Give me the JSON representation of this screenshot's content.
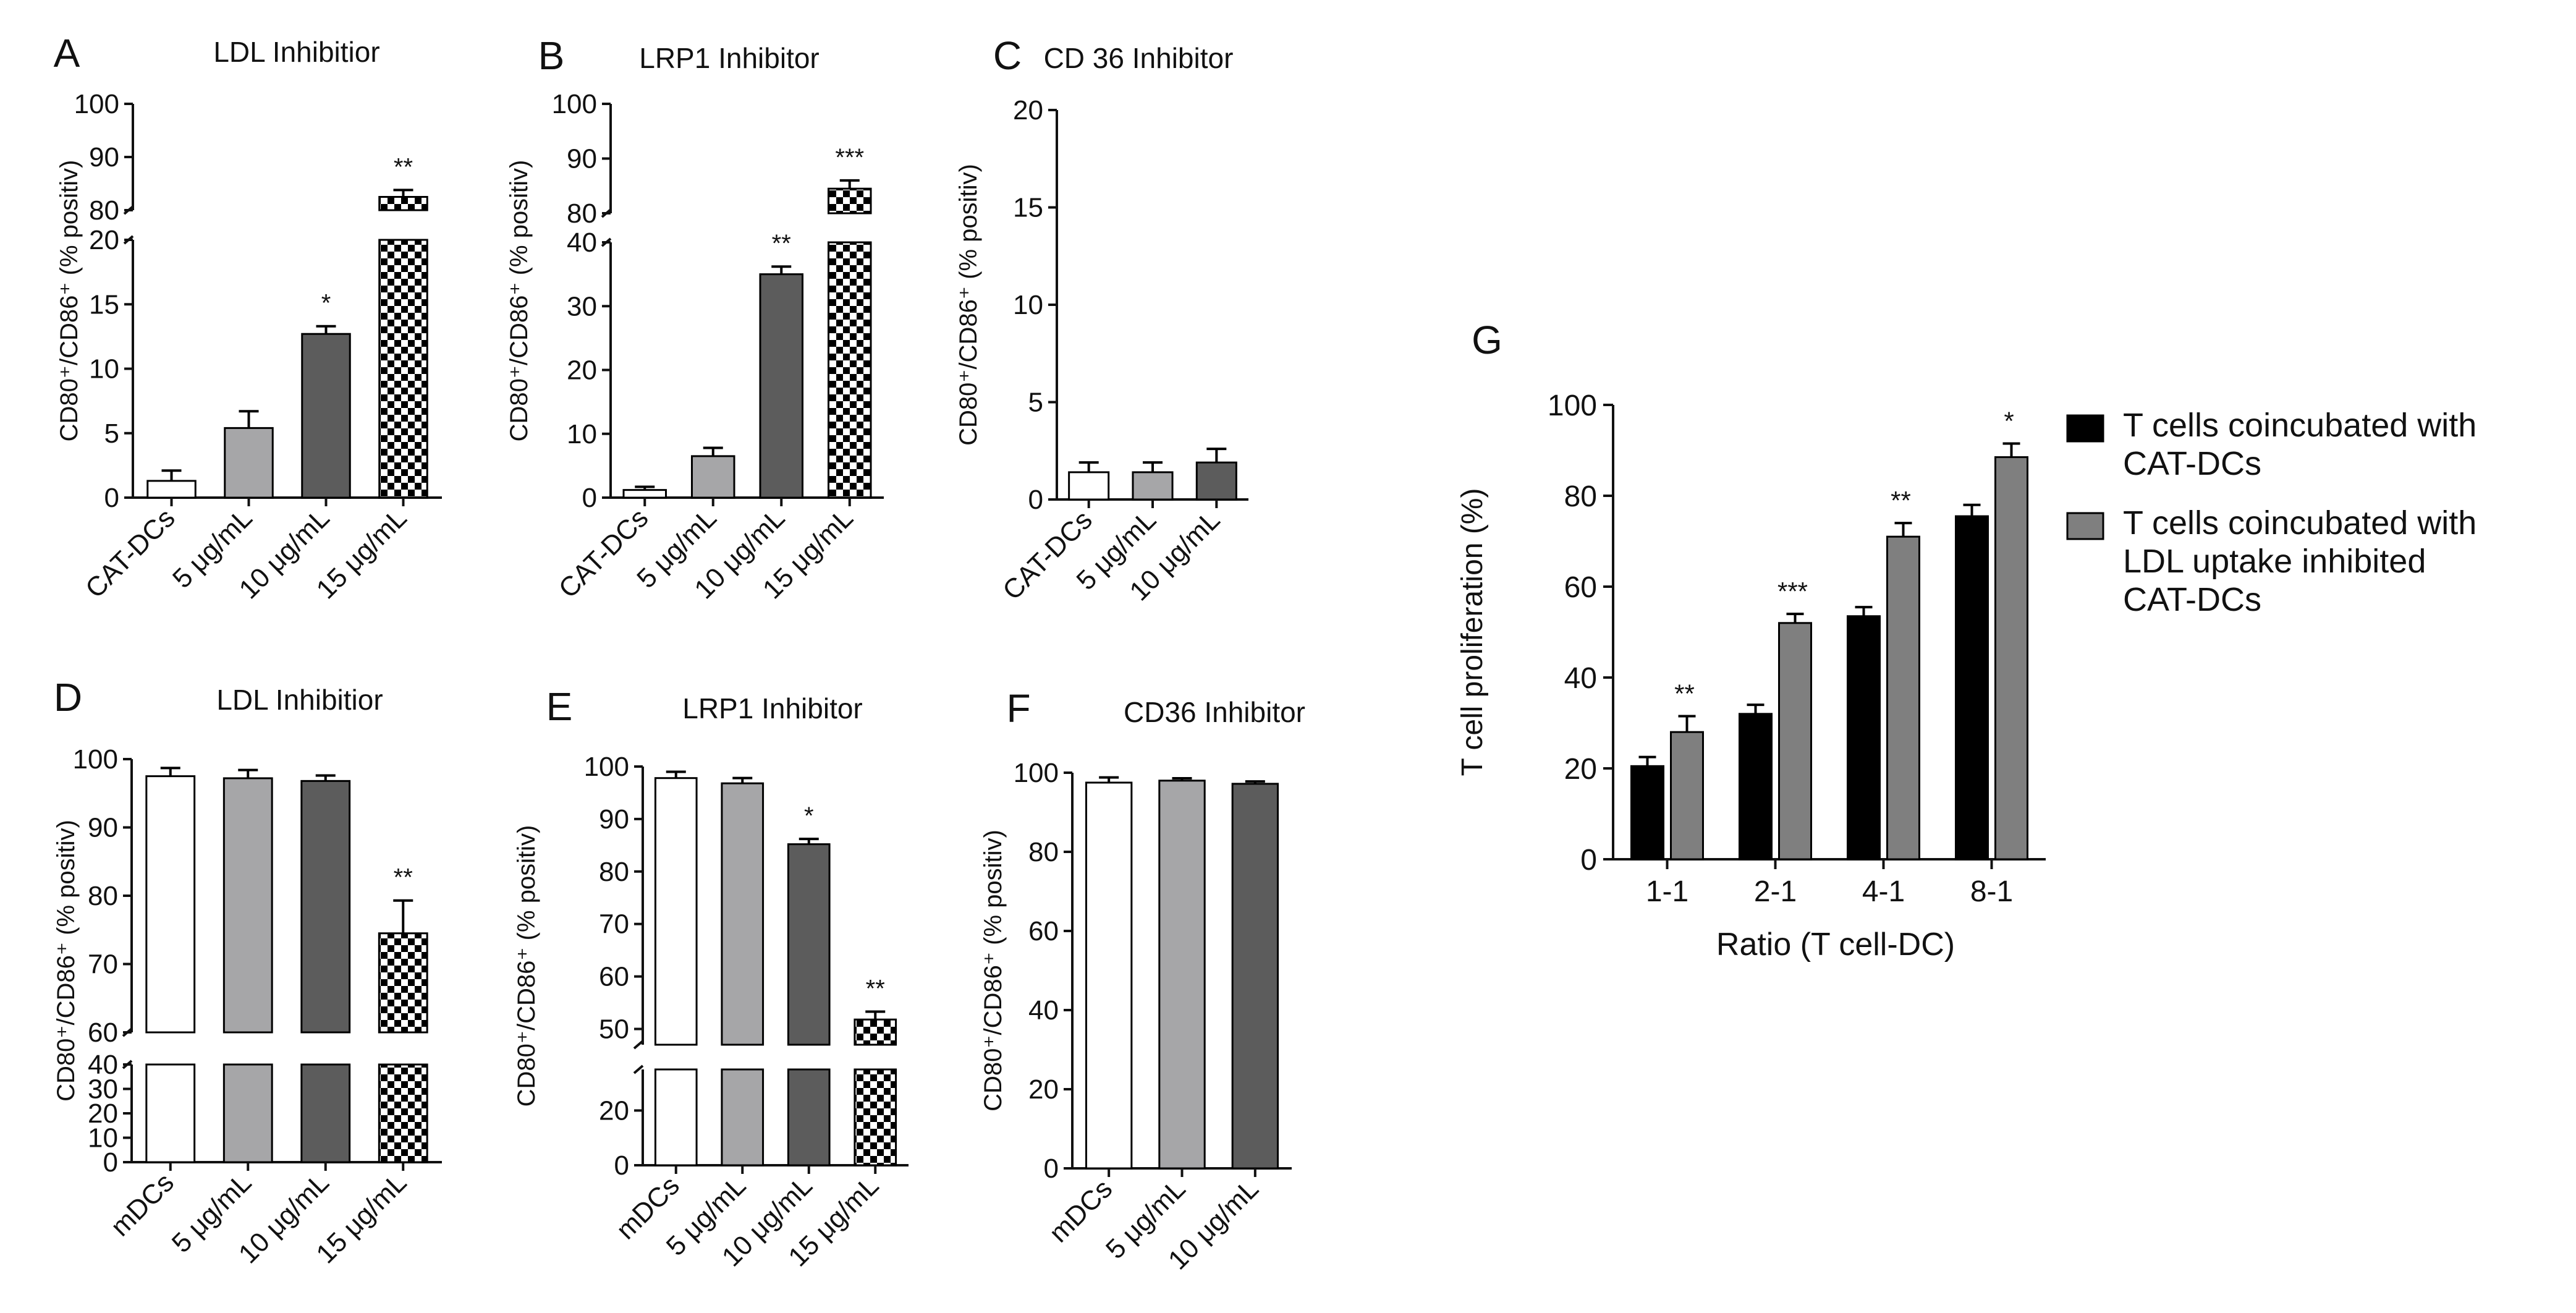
{
  "colors": {
    "axis": "#111111",
    "black": "#000000",
    "light_gray": "#a6a6a8",
    "dark_gray": "#5c5c5c",
    "medium_gray": "#7f7f7f",
    "white": "#ffffff"
  },
  "chart_data": [
    {
      "panel": "A",
      "type": "bar",
      "title": "LDL Inhibitior",
      "ylabel": "CD80⁺/CD86⁺ (% positiv)",
      "categories": [
        "CAT-DCs",
        "5 μg/mL",
        "10 μg/mL",
        "15 μg/mL"
      ],
      "values": [
        1.3,
        5.4,
        12.7,
        82.5
      ],
      "errors": [
        0.8,
        1.3,
        0.6,
        1.3
      ],
      "annotations": [
        "",
        "",
        "*",
        "**"
      ],
      "fills": [
        "white",
        "light_gray",
        "dark_gray",
        "checker"
      ],
      "axis_break": {
        "lower": [
          0,
          20
        ],
        "upper": [
          80,
          100
        ]
      },
      "yticks_lower": [
        "0",
        "5",
        "10",
        "15",
        "20"
      ],
      "yticks_upper": [
        "80",
        "90",
        "100"
      ]
    },
    {
      "panel": "B",
      "type": "bar",
      "title": "LRP1 Inhibitor",
      "ylabel": "CD80⁺/CD86⁺ (% positiv)",
      "categories": [
        "CAT-DCs",
        "5 μg/mL",
        "10 μg/mL",
        "15 μg/mL"
      ],
      "values": [
        1.2,
        6.5,
        35,
        84.5
      ],
      "errors": [
        0.5,
        1.3,
        1.2,
        1.5
      ],
      "annotations": [
        "",
        "",
        "**",
        "***"
      ],
      "fills": [
        "white",
        "light_gray",
        "dark_gray",
        "checker"
      ],
      "axis_break": {
        "lower": [
          0,
          40
        ],
        "upper": [
          80,
          100
        ]
      },
      "yticks_lower": [
        "0",
        "10",
        "20",
        "30",
        "40"
      ],
      "yticks_upper": [
        "80",
        "90",
        "100"
      ]
    },
    {
      "panel": "C",
      "type": "bar",
      "title": "CD 36 Inhibitor",
      "ylabel": "CD80⁺/CD86⁺ (% positiv)",
      "categories": [
        "CAT-DCs",
        "5 μg/mL",
        "10 μg/mL"
      ],
      "values": [
        1.4,
        1.4,
        1.9
      ],
      "errors": [
        0.5,
        0.5,
        0.7
      ],
      "annotations": [
        "",
        "",
        ""
      ],
      "fills": [
        "white",
        "light_gray",
        "dark_gray"
      ],
      "ylim": [
        0,
        20
      ],
      "yticks": [
        "0",
        "5",
        "10",
        "15",
        "20"
      ]
    },
    {
      "panel": "D",
      "type": "bar",
      "title": "LDL Inhibitior",
      "ylabel": "CD80⁺/CD86⁺ (% positiv)",
      "categories": [
        "mDCs",
        "5 μg/mL",
        "10 μg/mL",
        "15 μg/mL"
      ],
      "values": [
        97.5,
        97.2,
        96.8,
        74.5
      ],
      "errors": [
        1.2,
        1.2,
        0.8,
        4.8
      ],
      "annotations": [
        "",
        "",
        "",
        "**"
      ],
      "fills": [
        "white",
        "light_gray",
        "dark_gray",
        "checker"
      ],
      "axis_break": {
        "lower": [
          0,
          40
        ],
        "upper": [
          60,
          100
        ]
      },
      "yticks_lower": [
        "0",
        "10",
        "20",
        "30",
        "40"
      ],
      "yticks_upper": [
        "60",
        "70",
        "80",
        "90",
        "100"
      ]
    },
    {
      "panel": "E",
      "type": "bar",
      "title": "LRP1 Inhibitor",
      "ylabel": "CD80⁺/CD86⁺ (% positiv)",
      "categories": [
        "mDCs",
        "5 μg/mL",
        "10 μg/mL",
        "15 μg/mL"
      ],
      "values": [
        97.8,
        96.8,
        85.2,
        51.8
      ],
      "errors": [
        1.2,
        1.0,
        1.0,
        1.5
      ],
      "annotations": [
        "",
        "",
        "*",
        "**"
      ],
      "fills": [
        "white",
        "light_gray",
        "dark_gray",
        "checker"
      ],
      "axis_break": {
        "lower": [
          0,
          35
        ],
        "upper": [
          47,
          100
        ]
      },
      "yticks_lower": [
        "0",
        "20"
      ],
      "yticks_upper": [
        "50",
        "60",
        "70",
        "80",
        "90",
        "100"
      ]
    },
    {
      "panel": "F",
      "type": "bar",
      "title": "CD36 Inhibitor",
      "ylabel": "CD80⁺/CD86⁺ (% positiv)",
      "categories": [
        "mDCs",
        "5 μg/mL",
        "10 μg/mL"
      ],
      "values": [
        97.5,
        98,
        97.2
      ],
      "errors": [
        1.3,
        0.6,
        0.6
      ],
      "annotations": [
        "",
        "",
        ""
      ],
      "fills": [
        "white",
        "light_gray",
        "dark_gray"
      ],
      "ylim": [
        0,
        100
      ],
      "yticks": [
        "0",
        "20",
        "40",
        "60",
        "80",
        "100"
      ]
    },
    {
      "panel": "G",
      "type": "bar",
      "xlabel": "Ratio (T cell-DC)",
      "ylabel": "T cell proliferation (%)",
      "categories": [
        "1-1",
        "2-1",
        "4-1",
        "8-1"
      ],
      "ylim": [
        0,
        100
      ],
      "yticks": [
        "0",
        "20",
        "40",
        "60",
        "80",
        "100"
      ],
      "series": [
        {
          "name": "T cells coincubated with CAT-DCs",
          "legend_lines": [
            "T cells coincubated with",
            "CAT-DCs"
          ],
          "values": [
            20.5,
            32,
            53.5,
            75.5
          ],
          "errors": [
            2,
            2,
            2,
            2.5
          ],
          "fill": "black"
        },
        {
          "name": "T cells coincubated with LDL uptake inhibited CAT-DCs",
          "legend_lines": [
            "T cells coincubated with",
            "LDL uptake inhibited",
            "CAT-DCs"
          ],
          "values": [
            28,
            52,
            71,
            88.5
          ],
          "errors": [
            3.5,
            2,
            3,
            3
          ],
          "fill": "medium_gray"
        }
      ],
      "annotations": [
        "**",
        "***",
        "**",
        "*"
      ]
    }
  ]
}
